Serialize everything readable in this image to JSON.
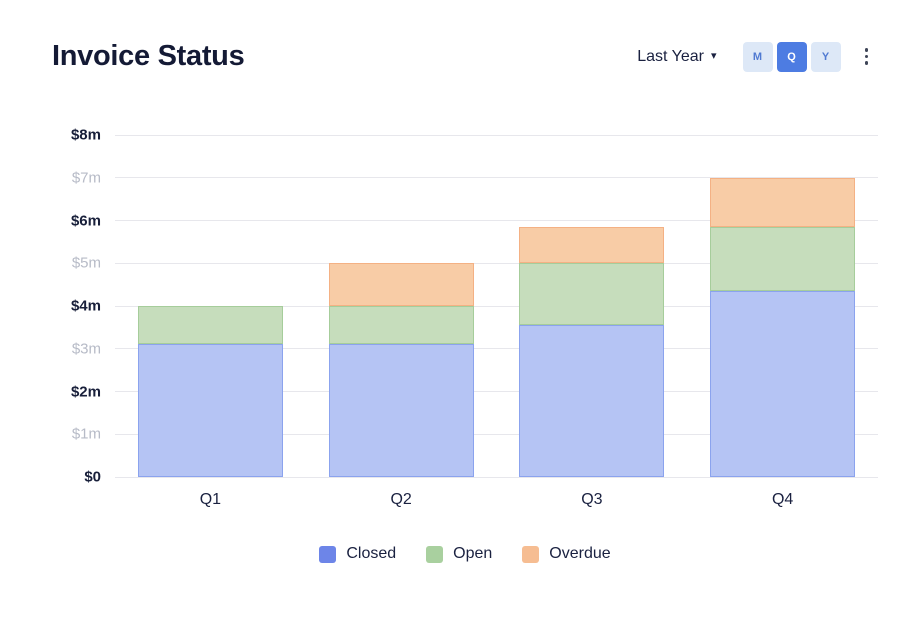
{
  "header": {
    "title": "Invoice Status",
    "period_label": "Last Year",
    "intervals": [
      {
        "label": "M",
        "active": false
      },
      {
        "label": "Q",
        "active": true
      },
      {
        "label": "Y",
        "active": false
      }
    ]
  },
  "chart_data": {
    "type": "bar",
    "stacked": true,
    "title": "Invoice Status",
    "categories": [
      "Q1",
      "Q2",
      "Q3",
      "Q4"
    ],
    "series": [
      {
        "name": "Closed",
        "values": [
          3.1,
          3.1,
          3.55,
          4.35
        ],
        "fill": "#b5c4f4",
        "border": "#8ba3ee",
        "legend": "#6d85e8"
      },
      {
        "name": "Open",
        "values": [
          0.9,
          0.9,
          1.45,
          1.5
        ],
        "fill": "#c6ddbc",
        "border": "#a6cd9b",
        "legend": "#a9d09f"
      },
      {
        "name": "Overdue",
        "values": [
          0,
          1.0,
          0.85,
          1.15
        ],
        "fill": "#f8cca6",
        "border": "#f4b184",
        "legend": "#f6bd92"
      }
    ],
    "ylim": [
      0,
      8
    ],
    "ytick_labels": [
      "$0",
      "$1m",
      "$2m",
      "$3m",
      "$4m",
      "$5m",
      "$6m",
      "$7m",
      "$8m"
    ],
    "grid": true,
    "legend_position": "bottom"
  }
}
